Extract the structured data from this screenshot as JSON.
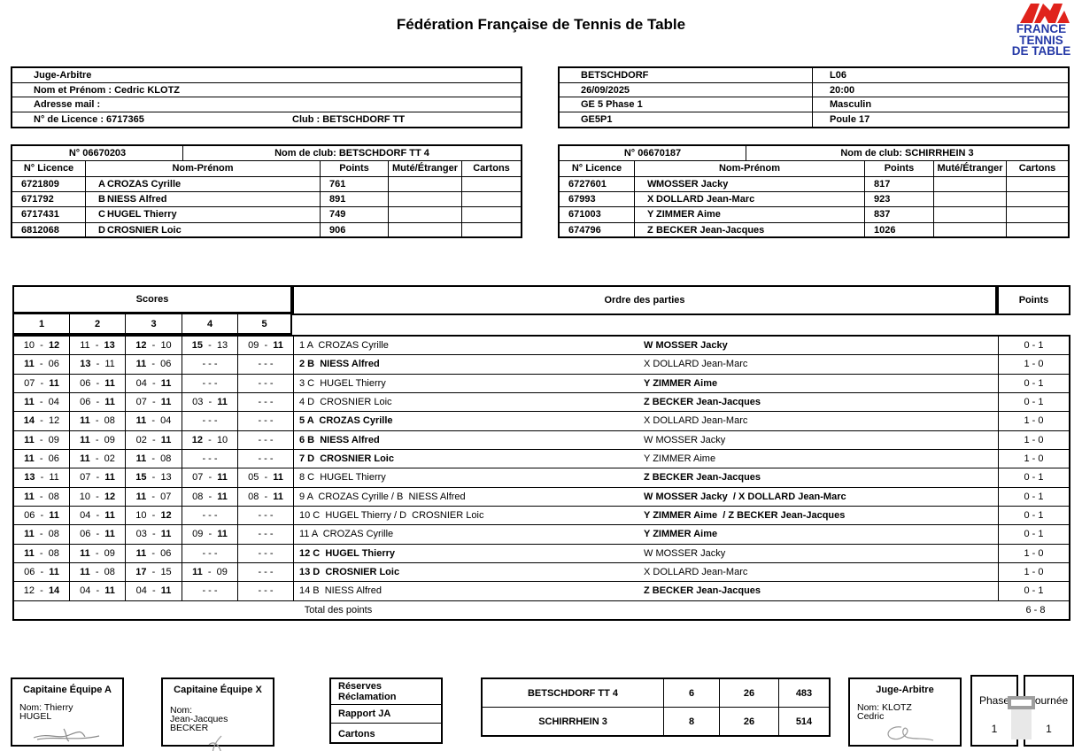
{
  "page": {
    "title": "Fédération Française de Tennis de Table"
  },
  "logo": {
    "text_lines": [
      "FRANCE",
      "TENNIS",
      "DE TABLE"
    ],
    "red": "#e0231c",
    "blue": "#2438a6"
  },
  "referee_box": {
    "line1": "Juge-Arbitre",
    "line2": "Nom et Prénom : Cedric KLOTZ",
    "line3": "Adresse mail :",
    "licence": "N° de Licence : 6717365",
    "club": "Club : BETSCHDORF TT"
  },
  "match_box": {
    "rows": [
      {
        "left": "BETSCHDORF",
        "right": "L06"
      },
      {
        "left": "26/09/2025",
        "right": "20:00"
      },
      {
        "left": "GE 5 Phase 1",
        "right": "Masculin"
      },
      {
        "left": "GE5P1",
        "right": "Poule 17"
      }
    ]
  },
  "team_headers": [
    "N° Licence",
    "Nom-Prénom",
    "Points",
    "Muté/Étranger",
    "Cartons"
  ],
  "team_a": {
    "number": "N° 06670203",
    "club": "Nom de club: BETSCHDORF TT 4",
    "players": [
      {
        "licence": "6721809",
        "letter": "A",
        "name": "CROZAS Cyrille",
        "points": "761",
        "mute": "",
        "cartons": ""
      },
      {
        "licence": "671792",
        "letter": "B",
        "name": "NIESS Alfred",
        "points": "891",
        "mute": "",
        "cartons": ""
      },
      {
        "licence": "6717431",
        "letter": "C",
        "name": "HUGEL Thierry",
        "points": "749",
        "mute": "",
        "cartons": ""
      },
      {
        "licence": "6812068",
        "letter": "D",
        "name": "CROSNIER Loic",
        "points": "906",
        "mute": "",
        "cartons": ""
      }
    ]
  },
  "team_x": {
    "number": "N° 06670187",
    "club": "Nom de club: SCHIRRHEIN 3",
    "players": [
      {
        "licence": "6727601",
        "letter": "W",
        "name": "MOSSER Jacky",
        "points": "817",
        "mute": "",
        "cartons": ""
      },
      {
        "licence": "67993",
        "letter": "X",
        "name": "DOLLARD Jean-Marc",
        "points": "923",
        "mute": "",
        "cartons": ""
      },
      {
        "licence": "671003",
        "letter": "Y",
        "name": "ZIMMER Aime",
        "points": "837",
        "mute": "",
        "cartons": ""
      },
      {
        "licence": "674796",
        "letter": "Z",
        "name": "BECKER Jean-Jacques",
        "points": "1026",
        "mute": "",
        "cartons": ""
      }
    ]
  },
  "match_table": {
    "scores_header": "Scores",
    "order_header": "Ordre des parties",
    "points_header": "Points",
    "game_numbers": [
      "1",
      "2",
      "3",
      "4",
      "5"
    ],
    "empty_game": "- - -",
    "rows": [
      {
        "games": [
          "10 - 12",
          "11 - 13",
          "12 - 10",
          "15 - 13",
          "09 - 11"
        ],
        "home": "1 A  CROZAS Cyrille",
        "away": "W MOSSER Jacky",
        "points": "0 - 1"
      },
      {
        "games": [
          "11 - 06",
          "13 - 11",
          "11 - 06",
          null,
          null
        ],
        "home": "2 B  NIESS Alfred",
        "away": "X DOLLARD Jean-Marc",
        "points": "1 - 0"
      },
      {
        "games": [
          "07 - 11",
          "06 - 11",
          "04 - 11",
          null,
          null
        ],
        "home": "3 C  HUGEL Thierry",
        "away": "Y ZIMMER Aime",
        "points": "0 - 1"
      },
      {
        "games": [
          "11 - 04",
          "06 - 11",
          "07 - 11",
          "03 - 11",
          null
        ],
        "home": "4 D  CROSNIER Loic",
        "away": "Z BECKER Jean-Jacques",
        "points": "0 - 1"
      },
      {
        "games": [
          "14 - 12",
          "11 - 08",
          "11 - 04",
          null,
          null
        ],
        "home": "5 A  CROZAS Cyrille",
        "away": "X DOLLARD Jean-Marc",
        "points": "1 - 0"
      },
      {
        "games": [
          "11 - 09",
          "11 - 09",
          "02 - 11",
          "12 - 10",
          null
        ],
        "home": "6 B  NIESS Alfred",
        "away": "W MOSSER Jacky",
        "points": "1 - 0"
      },
      {
        "games": [
          "11 - 06",
          "11 - 02",
          "11 - 08",
          null,
          null
        ],
        "home": "7 D  CROSNIER Loic",
        "away": "Y ZIMMER Aime",
        "points": "1 - 0"
      },
      {
        "games": [
          "13 - 11",
          "07 - 11",
          "15 - 13",
          "07 - 11",
          "05 - 11"
        ],
        "home": "8 C  HUGEL Thierry",
        "away": "Z BECKER Jean-Jacques",
        "points": "0 - 1"
      },
      {
        "games": [
          "11 - 08",
          "10 - 12",
          "11 - 07",
          "08 - 11",
          "08 - 11"
        ],
        "home": "9 A  CROZAS Cyrille / B  NIESS Alfred",
        "away": "W MOSSER Jacky  / X DOLLARD Jean-Marc",
        "points": "0 - 1"
      },
      {
        "games": [
          "06 - 11",
          "04 - 11",
          "10 - 12",
          null,
          null
        ],
        "home": "10 C  HUGEL Thierry / D  CROSNIER Loic",
        "away": "Y ZIMMER Aime  / Z BECKER Jean-Jacques",
        "points": "0 - 1"
      },
      {
        "games": [
          "11 - 08",
          "06 - 11",
          "03 - 11",
          "09 - 11",
          null
        ],
        "home": "11 A  CROZAS Cyrille",
        "away": "Y ZIMMER Aime",
        "points": "0 - 1"
      },
      {
        "games": [
          "11 - 08",
          "11 - 09",
          "11 - 06",
          null,
          null
        ],
        "home": "12 C  HUGEL Thierry",
        "away": "W MOSSER Jacky",
        "points": "1 - 0"
      },
      {
        "games": [
          "06 - 11",
          "11 - 08",
          "17 - 15",
          "11 - 09",
          null
        ],
        "home": "13 D  CROSNIER Loic",
        "away": "X DOLLARD Jean-Marc",
        "points": "1 - 0"
      },
      {
        "games": [
          "12 - 14",
          "04 - 11",
          "04 - 11",
          null,
          null
        ],
        "home": "14 B  NIESS Alfred",
        "away": "Z BECKER Jean-Jacques",
        "points": "0 - 1"
      }
    ],
    "total_label": "Total des points",
    "total": "6 - 8"
  },
  "captain_a": {
    "title": "Capitaine Équipe A",
    "lines": [
      "Nom: Thierry",
      "HUGEL"
    ]
  },
  "captain_x": {
    "title": "Capitaine Équipe X",
    "lines": [
      "Nom:",
      "Jean-Jacques",
      "BECKER"
    ]
  },
  "reserves_box": {
    "row1a": "Réserves",
    "row1b": "Réclamation",
    "row2": "Rapport JA",
    "row3": "Cartons"
  },
  "result_table": {
    "rows": [
      [
        "BETSCHDORF TT 4",
        "6",
        "26",
        "483"
      ],
      [
        "SCHIRRHEIN 3",
        "8",
        "26",
        "514"
      ]
    ]
  },
  "ja_box": {
    "title": "Juge-Arbitre",
    "lines": [
      "Nom: KLOTZ",
      "Cedric"
    ]
  },
  "phase_box": {
    "label": "Phase",
    "value": "1"
  },
  "journee_box": {
    "label": "Journée",
    "value": "1"
  }
}
